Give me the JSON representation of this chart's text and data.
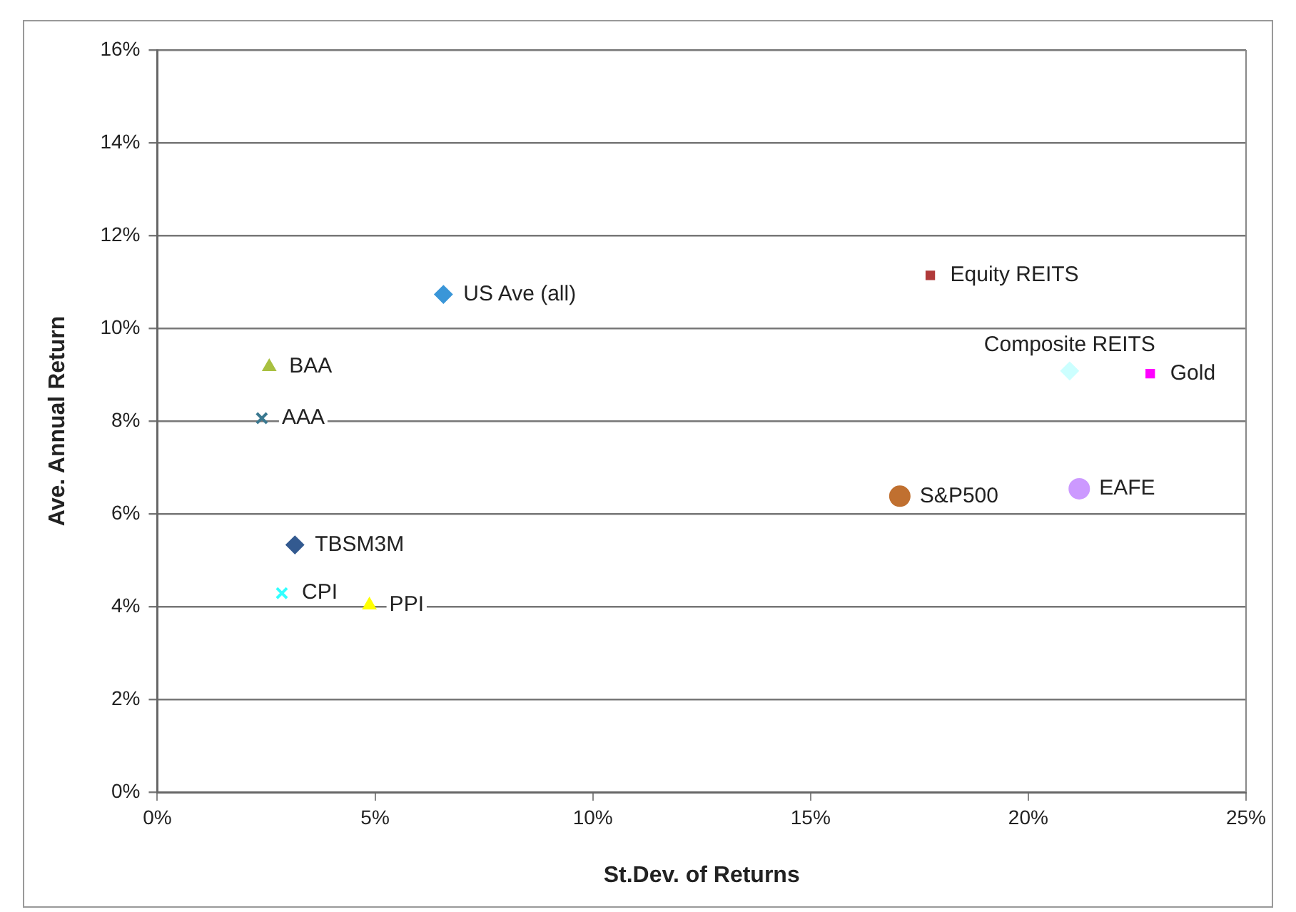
{
  "chart_data": {
    "type": "scatter",
    "xlabel": "St.Dev. of Returns",
    "ylabel": "Ave. Annual Return",
    "xlim": [
      0,
      25
    ],
    "xticks": [
      {
        "value": 0,
        "label": "0%"
      },
      {
        "value": 5,
        "label": "5%"
      },
      {
        "value": 10,
        "label": "10%"
      },
      {
        "value": 15,
        "label": "15%"
      },
      {
        "value": 20,
        "label": "20%"
      },
      {
        "value": 25,
        "label": "25%"
      }
    ],
    "ylim": [
      0,
      16
    ],
    "yticks": [
      {
        "value": 0,
        "label": "0%"
      },
      {
        "value": 2,
        "label": "2%"
      },
      {
        "value": 4,
        "label": "4%"
      },
      {
        "value": 6,
        "label": "6%"
      },
      {
        "value": 8,
        "label": "8%"
      },
      {
        "value": 10,
        "label": "10%"
      },
      {
        "value": 12,
        "label": "12%"
      },
      {
        "value": 14,
        "label": "14%"
      },
      {
        "value": 16,
        "label": "16%"
      }
    ],
    "grid": "y",
    "legend": false,
    "series": [
      {
        "name": "US Ave (all)",
        "color": "#3a96d8",
        "marker": "diamond",
        "x": [
          6.57
        ],
        "values": [
          10.73
        ]
      },
      {
        "name": "Equity REITS",
        "color": "#b03a3a",
        "marker": "square",
        "x": [
          17.75
        ],
        "values": [
          11.14
        ]
      },
      {
        "name": "BAA",
        "color": "#a8c040",
        "marker": "triangle",
        "x": [
          2.57
        ],
        "values": [
          9.17
        ]
      },
      {
        "name": "AAA",
        "color": "#3a7890",
        "marker": "cross",
        "x": [
          2.4
        ],
        "values": [
          8.06
        ]
      },
      {
        "name": "Composite REITS",
        "color": "#ccffff",
        "marker": "diamond",
        "x": [
          20.95
        ],
        "values": [
          9.08
        ]
      },
      {
        "name": "Gold",
        "color": "#ff00ff",
        "marker": "square",
        "x": [
          22.8
        ],
        "values": [
          9.02
        ]
      },
      {
        "name": "S&P500",
        "color": "#c07030",
        "marker": "circle",
        "x": [
          17.05
        ],
        "values": [
          6.38
        ]
      },
      {
        "name": "EAFE",
        "color": "#cc99ff",
        "marker": "circle",
        "x": [
          21.17
        ],
        "values": [
          6.54
        ]
      },
      {
        "name": "TBSM3M",
        "color": "#335a90",
        "marker": "diamond",
        "x": [
          3.16
        ],
        "values": [
          5.33
        ]
      },
      {
        "name": "CPI",
        "color": "#33ffff",
        "marker": "cross",
        "x": [
          2.86
        ],
        "values": [
          4.29
        ]
      },
      {
        "name": "PPI",
        "color": "#ffff00",
        "marker": "triangle",
        "x": [
          4.87
        ],
        "values": [
          4.03
        ]
      }
    ]
  }
}
